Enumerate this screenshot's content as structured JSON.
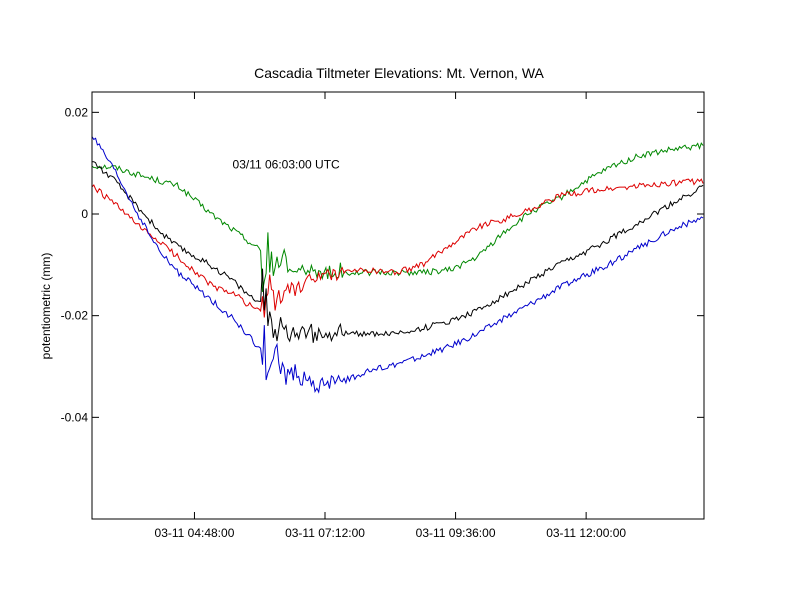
{
  "chart_data": {
    "type": "line",
    "title": "Cascadia Tiltmeter Elevations: Mt. Vernon, WA",
    "xlabel": "",
    "ylabel": "potentiometric (mm)",
    "x_range": [
      "03-11 02:55:00",
      "03-11 14:10:00"
    ],
    "ylim": [
      -0.06,
      0.024
    ],
    "y_ticks": [
      0.02,
      0,
      -0.02,
      -0.04,
      -0.06
    ],
    "y_tick_labels": [
      "0.02",
      "0",
      "-0.02",
      "-0.04",
      ""
    ],
    "x_ticks": [
      "03-11 04:48:00",
      "03-11 07:12:00",
      "03-11 09:36:00",
      "03-11 12:00:00"
    ],
    "x_tick_labels": [
      "03-11 04:48:00",
      "03-11 07:12:00",
      "03-11 09:36:00",
      "03-11 12:00:00"
    ],
    "grid": false,
    "legend": "none",
    "annotation": {
      "text": "03/11 06:03:00 UTC",
      "x": "03-11 05:30:00",
      "y": 0.009
    },
    "event_time": "03-11 06:03:00",
    "x": [
      "03-11 02:55:00",
      "03-11 03:20:00",
      "03-11 03:50:00",
      "03-11 04:10:00",
      "03-11 04:30:00",
      "03-11 04:50:00",
      "03-11 05:10:00",
      "03-11 05:30:00",
      "03-11 05:45:00",
      "03-11 06:00:00",
      "03-11 06:10:00",
      "03-11 06:30:00",
      "03-11 07:00:00",
      "03-11 07:30:00",
      "03-11 08:00:00",
      "03-11 08:30:00",
      "03-11 09:00:00",
      "03-11 09:30:00",
      "03-11 10:00:00",
      "03-11 10:30:00",
      "03-11 11:00:00",
      "03-11 11:30:00",
      "03-11 12:00:00",
      "03-11 12:30:00",
      "03-11 13:00:00",
      "03-11 13:30:00",
      "03-11 14:10:00"
    ],
    "series": [
      {
        "color": "#008800",
        "values": [
          0.0095,
          0.0092,
          0.0075,
          0.0065,
          0.0055,
          0.0025,
          -0.0005,
          -0.003,
          -0.005,
          -0.007,
          -0.009,
          -0.0105,
          -0.0115,
          -0.0115,
          -0.0115,
          -0.0115,
          -0.0115,
          -0.011,
          -0.0085,
          -0.0035,
          0.0005,
          0.003,
          0.0065,
          0.0095,
          0.0115,
          0.0125,
          0.0135
        ]
      },
      {
        "color": "#dd0000",
        "values": [
          0.0055,
          0.002,
          -0.003,
          -0.0055,
          -0.0085,
          -0.0115,
          -0.0145,
          -0.0155,
          -0.0175,
          -0.019,
          -0.0165,
          -0.0155,
          -0.0125,
          -0.0115,
          -0.011,
          -0.0115,
          -0.01,
          -0.006,
          -0.0025,
          -0.001,
          0.001,
          0.0035,
          0.0045,
          0.005,
          0.0055,
          0.006,
          0.0065
        ]
      },
      {
        "color": "#000000",
        "values": [
          0.0105,
          0.0065,
          0.0005,
          -0.0035,
          -0.0065,
          -0.0085,
          -0.0105,
          -0.013,
          -0.0155,
          -0.0175,
          -0.0205,
          -0.0225,
          -0.0235,
          -0.0235,
          -0.0235,
          -0.0235,
          -0.0225,
          -0.021,
          -0.019,
          -0.016,
          -0.013,
          -0.01,
          -0.0075,
          -0.0045,
          -0.0015,
          0.0015,
          0.0055
        ]
      },
      {
        "color": "#0000cc",
        "values": [
          0.0155,
          0.0085,
          -0.0015,
          -0.0075,
          -0.0115,
          -0.0145,
          -0.0175,
          -0.0205,
          -0.0235,
          -0.0265,
          -0.0285,
          -0.031,
          -0.0335,
          -0.033,
          -0.031,
          -0.0295,
          -0.028,
          -0.026,
          -0.0235,
          -0.0205,
          -0.0175,
          -0.0145,
          -0.012,
          -0.0095,
          -0.0065,
          -0.0035,
          -0.0005
        ]
      }
    ]
  }
}
